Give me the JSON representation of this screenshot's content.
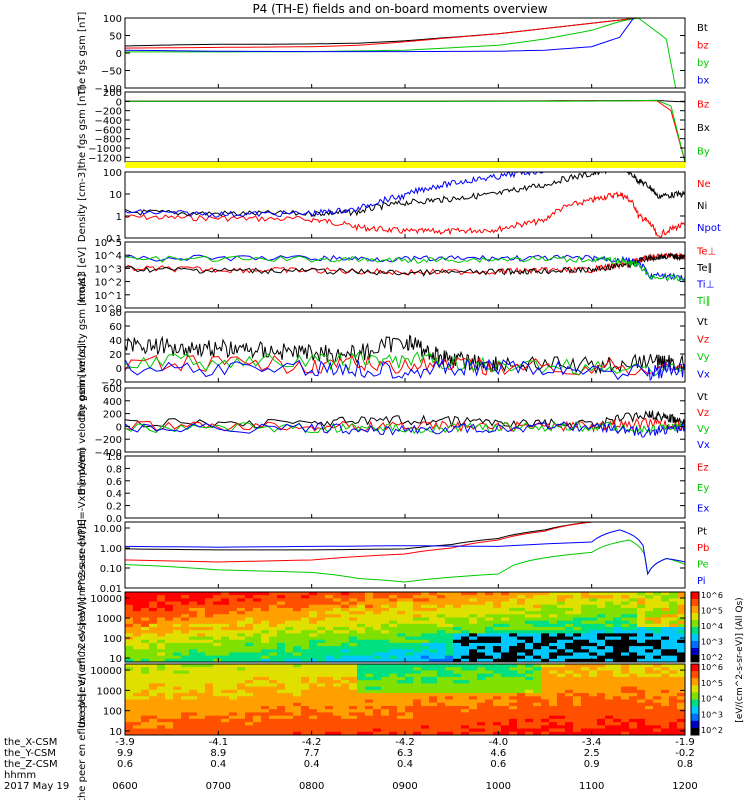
{
  "title": "P4 (TH-E) fields and on-board moments overview",
  "date_label": "2017 May 19",
  "x_axis": {
    "times": [
      "0600",
      "0700",
      "0800",
      "0900",
      "1000",
      "1100",
      "1200"
    ],
    "rows": [
      {
        "name": "the_X-CSM",
        "values": [
          "-3.9",
          "-4.1",
          "-4.2",
          "-4.2",
          "-4.0",
          "-3.4",
          "-1.9"
        ]
      },
      {
        "name": "the_Y-CSM",
        "values": [
          "9.9",
          "8.9",
          "7.7",
          "6.3",
          "4.6",
          "2.5",
          "-0.2"
        ]
      },
      {
        "name": "the_Z-CSM",
        "values": [
          "0.6",
          "0.4",
          "0.4",
          "0.4",
          "0.6",
          "0.9",
          "0.8"
        ]
      },
      {
        "name": "hhmm",
        "values": []
      }
    ]
  },
  "colors": {
    "black": "#000000",
    "red": "#ff0000",
    "green": "#00c800",
    "blue": "#0000ff",
    "yellow": "#ffff00"
  },
  "colorbar": {
    "label": "[eV/(cm^2-s-sr-eV)] (All Qs)",
    "ticks": [
      "10^6",
      "10^5",
      "10^4",
      "10^3",
      "10^2"
    ]
  },
  "chart_data": [
    {
      "type": "line",
      "ylabel": "the fgs gsm [nT]",
      "ylim": [
        -100,
        100
      ],
      "yticks": [
        "100",
        "50",
        "0",
        "−50",
        "−100"
      ],
      "x_range_hours": [
        6,
        12
      ],
      "series": [
        {
          "name": "Bt",
          "color": "#000000",
          "x": [
            6.0,
            6.5,
            7.0,
            7.5,
            8.0,
            8.5,
            9.0,
            9.5,
            10.0,
            10.5,
            11.0,
            11.5
          ],
          "values": [
            20,
            23,
            25,
            25,
            26,
            28,
            35,
            45,
            55,
            70,
            85,
            100
          ]
        },
        {
          "name": "bz",
          "color": "#ff0000",
          "x": [
            6.0,
            6.5,
            7.0,
            7.5,
            8.0,
            8.5,
            9.0,
            9.5,
            10.0,
            10.5,
            11.0,
            11.5
          ],
          "values": [
            14,
            15,
            16,
            17,
            18,
            22,
            32,
            44,
            55,
            70,
            85,
            100
          ]
        },
        {
          "name": "by",
          "color": "#00c800",
          "x": [
            6.0,
            7.0,
            8.0,
            9.0,
            10.0,
            10.5,
            11.0,
            11.3,
            11.5,
            11.8,
            11.9
          ],
          "values": [
            3,
            3,
            4,
            8,
            22,
            40,
            65,
            90,
            100,
            40,
            -100
          ]
        },
        {
          "name": "bx",
          "color": "#0000ff",
          "x": [
            6.0,
            7.0,
            8.0,
            9.0,
            10.0,
            10.5,
            11.0,
            11.3,
            11.45
          ],
          "values": [
            8,
            5,
            4,
            4,
            5,
            8,
            18,
            45,
            100
          ]
        }
      ]
    },
    {
      "type": "line",
      "ylabel": "the fgs gsm [nT]",
      "ylim": [
        -1300,
        200
      ],
      "yticks": [
        "200",
        "0",
        "−200",
        "−400",
        "−600",
        "−800",
        "−1000",
        "−1200"
      ],
      "series": [
        {
          "name": "Bz",
          "color": "#ff0000",
          "x": [
            6.0,
            8.0,
            10.0,
            11.0,
            11.7,
            11.85,
            12.0
          ],
          "values": [
            0,
            0,
            5,
            15,
            10,
            -200,
            -1300
          ]
        },
        {
          "name": "Bx",
          "color": "#000000",
          "x": [
            6.0,
            8.0,
            10.0,
            11.0,
            11.7,
            11.85,
            12.0
          ],
          "values": [
            0,
            0,
            5,
            10,
            20,
            0,
            -10
          ]
        },
        {
          "name": "By",
          "color": "#00c800",
          "x": [
            6.0,
            8.0,
            10.0,
            11.0,
            11.7,
            11.85,
            12.0
          ],
          "values": [
            0,
            0,
            0,
            5,
            20,
            -100,
            -1300
          ]
        }
      ]
    },
    {
      "type": "log-line",
      "ylabel": "Density [cm-3]",
      "ylog": [
        -1,
        2
      ],
      "yticks": [
        "100",
        "10",
        "1",
        "0.1"
      ],
      "series": [
        {
          "name": "Ne",
          "color": "#ff0000",
          "x": [
            6.0,
            7.0,
            8.0,
            8.5,
            9.0,
            9.5,
            10.0,
            10.5,
            11.0,
            11.3,
            11.5,
            11.7,
            12.0
          ],
          "values": [
            0.9,
            0.8,
            0.7,
            0.3,
            0.2,
            0.2,
            0.25,
            0.6,
            5,
            10,
            1,
            0.1,
            0.4
          ]
        },
        {
          "name": "Ni",
          "color": "#000000",
          "x": [
            6.0,
            7.0,
            8.0,
            8.5,
            9.0,
            9.5,
            10.0,
            10.5,
            11.0,
            11.3,
            11.5,
            11.7,
            12.0
          ],
          "values": [
            1.5,
            1.3,
            1.3,
            1.5,
            4,
            6,
            10,
            25,
            80,
            150,
            40,
            8,
            10
          ]
        },
        {
          "name": "Npot",
          "color": "#0000ff",
          "x": [
            6.0,
            7.0,
            8.0,
            8.5,
            9.0,
            9.5,
            10.0,
            10.5,
            11.0
          ],
          "values": [
            1.5,
            1.2,
            1.3,
            2,
            8,
            30,
            60,
            120,
            200
          ]
        }
      ]
    },
    {
      "type": "log-line",
      "ylabel": "moat3 [eV]",
      "ylog": [
        0,
        5
      ],
      "yticks": [
        "10^5",
        "10^4",
        "10^3",
        "10^2",
        "10^1",
        "10^0"
      ],
      "series": [
        {
          "name": "Te⊥",
          "color": "#ff0000",
          "x": [
            6.0,
            7.0,
            8.0,
            9.0,
            10.0,
            10.5,
            11.0,
            11.4,
            11.6,
            11.8,
            12.0
          ],
          "values": [
            1000,
            800,
            700,
            500,
            600,
            700,
            800,
            2000,
            6000,
            9000,
            8000
          ]
        },
        {
          "name": "Te∥",
          "color": "#000000",
          "x": [
            6.0,
            7.0,
            8.0,
            9.0,
            10.0,
            10.5,
            11.0,
            11.4,
            11.6,
            11.8,
            12.0
          ],
          "values": [
            900,
            700,
            650,
            450,
            550,
            650,
            750,
            1800,
            5500,
            8500,
            7500
          ]
        },
        {
          "name": "Ti⊥",
          "color": "#0000ff",
          "x": [
            6.0,
            8.0,
            9.0,
            10.0,
            11.0,
            11.4,
            11.6,
            12.0
          ],
          "values": [
            6000,
            6000,
            5000,
            6000,
            6000,
            4000,
            300,
            200
          ]
        },
        {
          "name": "Ti∥",
          "color": "#00c800",
          "x": [
            6.0,
            8.0,
            9.0,
            10.0,
            11.0,
            11.4,
            11.6,
            12.0
          ],
          "values": [
            5000,
            5000,
            4000,
            5000,
            5000,
            3000,
            250,
            150
          ]
        }
      ]
    },
    {
      "type": "line",
      "ylabel": "the peim velocity gsm [km/s]",
      "ylim": [
        -20,
        80
      ],
      "yticks": [
        "80",
        "60",
        "40",
        "20",
        "0",
        "−20"
      ],
      "series": [
        {
          "name": "Vt",
          "color": "#000000",
          "x": [
            6.0,
            6.5,
            7.0,
            7.5,
            8.0,
            8.5,
            9.0,
            9.3,
            9.6,
            10.0,
            11.0,
            11.7,
            12.0
          ],
          "values": [
            35,
            30,
            28,
            25,
            22,
            20,
            40,
            20,
            10,
            6,
            3,
            10,
            5
          ]
        },
        {
          "name": "Vz",
          "color": "#ff0000",
          "x": [
            6.0,
            8.0,
            9.0,
            10.0,
            12.0
          ],
          "values": [
            5,
            5,
            4,
            1,
            0
          ]
        },
        {
          "name": "Vy",
          "color": "#00c800",
          "x": [
            6.0,
            8.0,
            9.0,
            10.0,
            12.0
          ],
          "values": [
            10,
            8,
            12,
            2,
            0
          ]
        },
        {
          "name": "Vx",
          "color": "#0000ff",
          "x": [
            6.0,
            8.0,
            9.0,
            10.0,
            11.6,
            12.0
          ],
          "values": [
            0,
            0,
            -2,
            0,
            -5,
            -3
          ]
        }
      ]
    },
    {
      "type": "line",
      "ylabel": "the peem velocity gsm [km/s]",
      "ylim": [
        -400,
        600
      ],
      "yticks": [
        "600",
        "400",
        "200",
        "0",
        "−200",
        "−400"
      ],
      "series": [
        {
          "name": "Vt",
          "color": "#000000",
          "x": [
            6.0,
            8.0,
            9.0,
            10.0,
            11.0,
            11.6,
            11.8,
            12.0
          ],
          "values": [
            40,
            60,
            100,
            60,
            20,
            200,
            150,
            30
          ]
        },
        {
          "name": "Vz",
          "color": "#ff0000",
          "x": [
            6.0,
            8.0,
            9.0,
            10.0,
            11.0,
            11.6,
            12.0
          ],
          "values": [
            0,
            0,
            10,
            0,
            0,
            50,
            0
          ]
        },
        {
          "name": "Vy",
          "color": "#00c800",
          "x": [
            6.0,
            8.0,
            9.0,
            10.0,
            11.0,
            11.6,
            12.0
          ],
          "values": [
            -20,
            -20,
            -30,
            -10,
            0,
            -50,
            0
          ]
        },
        {
          "name": "Vx",
          "color": "#0000ff",
          "x": [
            6.0,
            8.0,
            9.0,
            10.0,
            11.0,
            11.6,
            12.0
          ],
          "values": [
            -30,
            -30,
            -60,
            -20,
            0,
            -100,
            0
          ]
        }
      ]
    },
    {
      "type": "line",
      "ylabel": "E=-VxB [mV/m]",
      "ylim": [
        0,
        1
      ],
      "yticks": [
        "1.0",
        "0.8",
        "0.6",
        "0.4",
        "0.2",
        "0.0"
      ],
      "series": [
        {
          "name": "Ez",
          "color": "#ff0000",
          "x": [],
          "values": []
        },
        {
          "name": "Ey",
          "color": "#00c800",
          "x": [],
          "values": []
        },
        {
          "name": "Ex",
          "color": "#0000ff",
          "x": [],
          "values": []
        }
      ]
    },
    {
      "type": "log-line",
      "ylabel": "Pressure [nPa]",
      "ylog": [
        -2,
        1.3
      ],
      "yticks": [
        "10.00",
        "1.00",
        "0.10",
        "0.01"
      ],
      "series": [
        {
          "name": "Pt",
          "color": "#000000",
          "x": [
            6.0,
            7.0,
            8.0,
            9.0,
            9.5,
            10.0,
            10.5,
            11.0
          ],
          "values": [
            0.9,
            0.8,
            0.8,
            0.9,
            1.5,
            3,
            8,
            20
          ]
        },
        {
          "name": "Pb",
          "color": "#ff0000",
          "x": [
            6.0,
            7.0,
            8.0,
            9.0,
            9.5,
            10.0,
            10.5,
            11.0
          ],
          "values": [
            0.25,
            0.2,
            0.25,
            0.5,
            1,
            2.5,
            7,
            20
          ]
        },
        {
          "name": "Pe",
          "color": "#00c800",
          "x": [
            6.0,
            7.0,
            8.0,
            8.5,
            9.0,
            10.0,
            11.0,
            11.4,
            11.6,
            11.8,
            12.0
          ],
          "values": [
            0.15,
            0.08,
            0.06,
            0.03,
            0.02,
            0.05,
            0.6,
            2.5,
            0.05,
            0.3,
            0.15
          ]
        },
        {
          "name": "Pi",
          "color": "#0000ff",
          "x": [
            6.0,
            7.0,
            8.0,
            9.0,
            10.0,
            11.0,
            11.3,
            11.6,
            11.8,
            12.0
          ],
          "values": [
            1.2,
            1.1,
            1.2,
            1.3,
            1.2,
            2,
            8,
            0.05,
            0.3,
            0.2
          ]
        }
      ]
    },
    {
      "type": "heatmap",
      "ylabel": "the peir en eflux eV [eV/(cm^2-s-sr-eV)]",
      "ylog": [
        0.8,
        4.3
      ],
      "yticks": [
        "10000",
        "1000",
        "100",
        "10"
      ],
      "note": "ion energy spectrogram"
    },
    {
      "type": "heatmap",
      "ylabel": "the peer en eflux eV [eV/(cm^2-s-sr-eV)]",
      "ylog": [
        0.8,
        4.3
      ],
      "yticks": [
        "10000",
        "1000",
        "100",
        "10"
      ],
      "note": "electron energy spectrogram"
    }
  ]
}
